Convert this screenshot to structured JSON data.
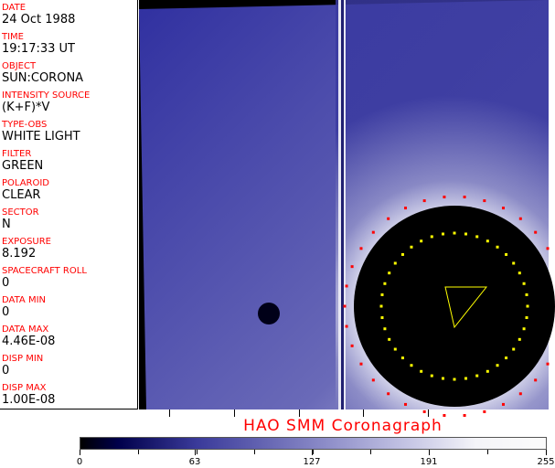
{
  "fields": [
    {
      "label": "DATE",
      "value": "24 Oct 1988"
    },
    {
      "label": "TIME",
      "value": "19:17:33 UT"
    },
    {
      "label": "OBJECT",
      "value": "SUN:CORONA"
    },
    {
      "label": "INTENSITY SOURCE",
      "value": "(K+F)*V"
    },
    {
      "label": "TYPE-OBS",
      "value": "WHITE LIGHT"
    },
    {
      "label": "FILTER",
      "value": "GREEN"
    },
    {
      "label": "POLAROID",
      "value": "CLEAR"
    },
    {
      "label": "SECTOR",
      "value": "N"
    },
    {
      "label": "EXPOSURE",
      "value": "8.192"
    },
    {
      "label": "SPACECRAFT ROLL",
      "value": "0"
    },
    {
      "label": "DATA MIN",
      "value": "0"
    },
    {
      "label": "DATA MAX",
      "value": "4.46E-08"
    },
    {
      "label": "DISP MIN",
      "value": "0"
    },
    {
      "label": "DISP MAX",
      "value": "1.00E-08"
    }
  ],
  "title": "HAO  SMM Coronagraph",
  "colorbar": {
    "ticks": [
      "0",
      "63",
      "127",
      "191",
      "255"
    ]
  }
}
